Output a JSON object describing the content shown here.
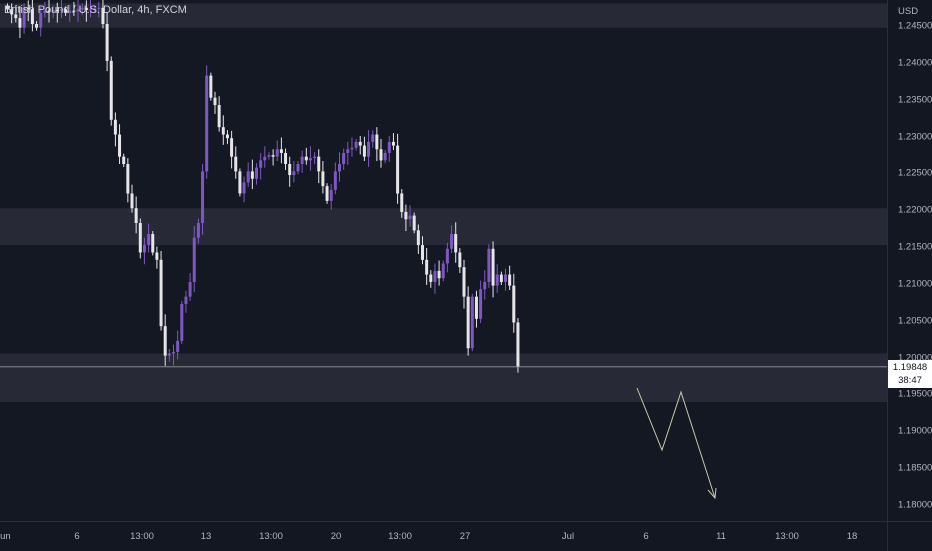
{
  "symbol": {
    "title": "British Pound / U.S. Dollar, 4h, FXCM"
  },
  "price_axis": {
    "currency": "USD",
    "labels": [
      "1.24500",
      "1.24000",
      "1.23500",
      "1.23000",
      "1.22500",
      "1.22000",
      "1.21500",
      "1.21000",
      "1.20500",
      "1.20000",
      "1.19500",
      "1.19000",
      "1.18500",
      "1.18000"
    ]
  },
  "time_axis": {
    "labels": [
      "Jun",
      "6",
      "13:00",
      "13",
      "13:00",
      "20",
      "13:00",
      "27",
      "Jul",
      "6",
      "11",
      "13:00",
      "18"
    ]
  },
  "current_price": {
    "price": "1.19848",
    "countdown": "38:47"
  },
  "colors": {
    "background": "#131722",
    "up_candle": "#7e57c2",
    "down_candle": "#e6e6ea",
    "zone": "#2a2e39",
    "projection": "#c8c8a8",
    "price_line": "#9598a1"
  },
  "chart_data": {
    "type": "candlestick",
    "title": "British Pound / U.S. Dollar, 4h, FXCM",
    "ylabel": "USD",
    "ylim": [
      1.1778,
      1.2475
    ],
    "yticks": [
      1.245,
      1.24,
      1.235,
      1.23,
      1.225,
      1.22,
      1.215,
      1.21,
      1.205,
      1.2,
      1.195,
      1.19,
      1.185,
      1.18
    ],
    "xticks": [
      "Jun",
      "6",
      "13:00",
      "13",
      "13:00",
      "20",
      "13:00",
      "27",
      "Jul",
      "6",
      "11",
      "13:00",
      "18"
    ],
    "zones": [
      {
        "from": 1.2445,
        "to": 1.2478
      },
      {
        "from": 1.215,
        "to": 1.22
      },
      {
        "from": 1.1937,
        "to": 1.2003
      }
    ],
    "last_price": 1.19848,
    "closes": [
      1.247,
      1.2463,
      1.2458,
      1.2445,
      1.2472,
      1.247,
      1.245,
      1.2445,
      1.2465,
      1.2468,
      1.2466,
      1.2469,
      1.2468,
      1.247,
      1.2465,
      1.2468,
      1.2467,
      1.247,
      1.2472,
      1.2469,
      1.247,
      1.2471,
      1.2472,
      1.245,
      1.24,
      1.232,
      1.23,
      1.227,
      1.226,
      1.222,
      1.22,
      1.218,
      1.214,
      1.215,
      1.2165,
      1.214,
      1.213,
      1.204,
      1.2,
      1.2003,
      1.2005,
      1.202,
      1.207,
      1.208,
      1.21,
      1.216,
      1.218,
      1.225,
      1.238,
      1.235,
      1.234,
      1.231,
      1.23,
      1.2295,
      1.227,
      1.225,
      1.222,
      1.2235,
      1.225,
      1.224,
      1.2255,
      1.2265,
      1.227,
      1.2272,
      1.227,
      1.228,
      1.2275,
      1.226,
      1.2245,
      1.225,
      1.226,
      1.227,
      1.2265,
      1.2268,
      1.227,
      1.225,
      1.223,
      1.221,
      1.2225,
      1.225,
      1.226,
      1.2275,
      1.228,
      1.2282,
      1.229,
      1.2285,
      1.227,
      1.229,
      1.23,
      1.228,
      1.2265,
      1.2275,
      1.229,
      1.2285,
      1.222,
      1.2195,
      1.2185,
      1.219,
      1.217,
      1.215,
      1.213,
      1.211,
      1.21,
      1.2115,
      1.2105,
      1.2125,
      1.2145,
      1.2165,
      1.214,
      1.212,
      1.208,
      1.201,
      1.208,
      1.205,
      1.209,
      1.21,
      1.2145,
      1.2095,
      1.211,
      1.21,
      1.211,
      1.2095,
      1.2045,
      1.1985
    ]
  }
}
